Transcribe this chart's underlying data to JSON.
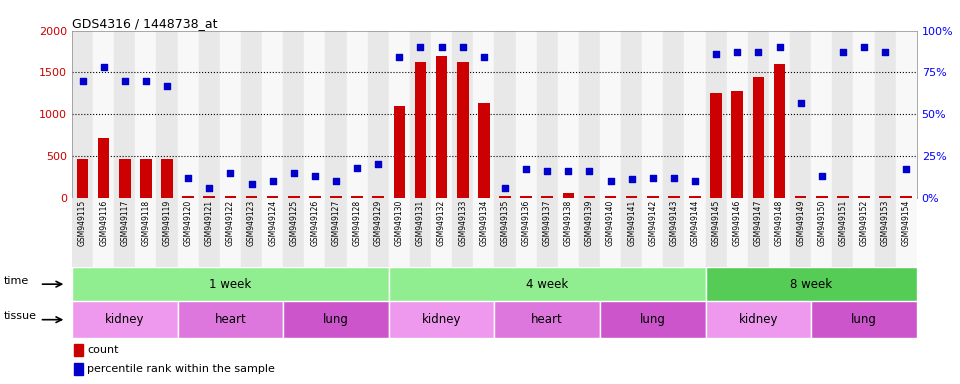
{
  "title": "GDS4316 / 1448738_at",
  "samples": [
    "GSM949115",
    "GSM949116",
    "GSM949117",
    "GSM949118",
    "GSM949119",
    "GSM949120",
    "GSM949121",
    "GSM949122",
    "GSM949123",
    "GSM949124",
    "GSM949125",
    "GSM949126",
    "GSM949127",
    "GSM949128",
    "GSM949129",
    "GSM949130",
    "GSM949131",
    "GSM949132",
    "GSM949133",
    "GSM949134",
    "GSM949135",
    "GSM949136",
    "GSM949137",
    "GSM949138",
    "GSM949139",
    "GSM949140",
    "GSM949141",
    "GSM949142",
    "GSM949143",
    "GSM949144",
    "GSM949145",
    "GSM949146",
    "GSM949147",
    "GSM949148",
    "GSM949149",
    "GSM949150",
    "GSM949151",
    "GSM949152",
    "GSM949153",
    "GSM949154"
  ],
  "counts": [
    460,
    720,
    460,
    470,
    460,
    25,
    25,
    25,
    25,
    25,
    25,
    25,
    25,
    25,
    25,
    1100,
    1620,
    1700,
    1620,
    1130,
    25,
    25,
    25,
    60,
    25,
    25,
    25,
    25,
    25,
    25,
    1250,
    1280,
    1440,
    1600,
    25,
    25,
    25,
    25,
    25,
    25
  ],
  "percentiles": [
    70,
    78,
    70,
    70,
    67,
    12,
    6,
    15,
    8,
    10,
    15,
    13,
    10,
    18,
    20,
    84,
    90,
    90,
    90,
    84,
    6,
    17,
    16,
    16,
    16,
    10,
    11,
    12,
    12,
    10,
    86,
    87,
    87,
    90,
    57,
    13,
    87,
    90,
    87,
    17
  ],
  "ylim_left": [
    0,
    2000
  ],
  "yticks_left": [
    0,
    500,
    1000,
    1500,
    2000
  ],
  "yticks_right": [
    0,
    25,
    50,
    75,
    100
  ],
  "ytick_labels_right": [
    "0%",
    "25%",
    "50%",
    "75%",
    "100%"
  ],
  "bar_color": "#cc0000",
  "dot_color": "#0000cc",
  "time_groups": [
    {
      "label": "1 week",
      "start": 0,
      "end": 15,
      "color": "#90ee90"
    },
    {
      "label": "4 week",
      "start": 15,
      "end": 30,
      "color": "#90ee90"
    },
    {
      "label": "8 week",
      "start": 30,
      "end": 40,
      "color": "#55cc55"
    }
  ],
  "tissue_groups": [
    {
      "label": "kidney",
      "start": 0,
      "end": 5,
      "color": "#ee99ee"
    },
    {
      "label": "heart",
      "start": 5,
      "end": 10,
      "color": "#dd77dd"
    },
    {
      "label": "lung",
      "start": 10,
      "end": 15,
      "color": "#cc55cc"
    },
    {
      "label": "kidney",
      "start": 15,
      "end": 20,
      "color": "#ee99ee"
    },
    {
      "label": "heart",
      "start": 20,
      "end": 25,
      "color": "#dd77dd"
    },
    {
      "label": "lung",
      "start": 25,
      "end": 30,
      "color": "#cc55cc"
    },
    {
      "label": "kidney",
      "start": 30,
      "end": 35,
      "color": "#ee99ee"
    },
    {
      "label": "lung",
      "start": 35,
      "end": 40,
      "color": "#cc55cc"
    }
  ]
}
